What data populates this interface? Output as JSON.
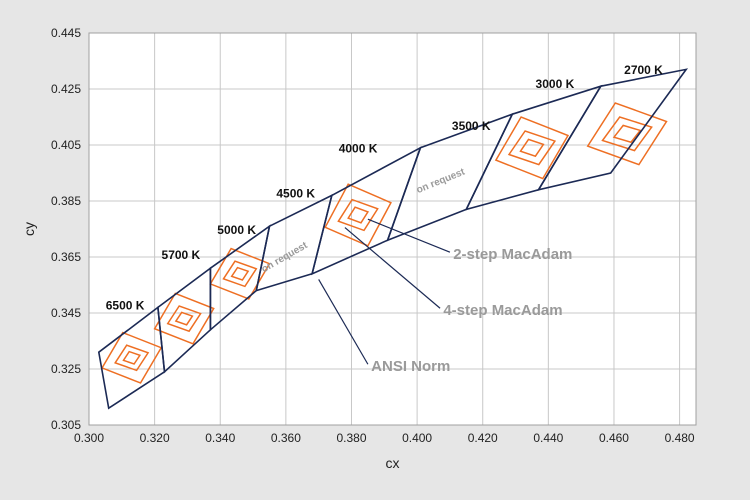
{
  "chart_data": {
    "type": "scatter",
    "title": "",
    "xlabel": "cx",
    "ylabel": "cy",
    "xlim": [
      0.3,
      0.485
    ],
    "ylim": [
      0.305,
      0.445
    ],
    "x_ticks": [
      0.3,
      0.32,
      0.34,
      0.36,
      0.38,
      0.4,
      0.42,
      0.44,
      0.46,
      0.48
    ],
    "x_tick_labels": [
      "0.300",
      "0.320",
      "0.340",
      "0.360",
      "0.380",
      "0.400",
      "0.420",
      "0.440",
      "0.460",
      "0.480"
    ],
    "y_ticks": [
      0.305,
      0.325,
      0.345,
      0.365,
      0.385,
      0.405,
      0.425,
      0.445
    ],
    "y_tick_labels": [
      "0.305",
      "0.325",
      "0.345",
      "0.365",
      "0.385",
      "0.405",
      "0.425",
      "0.445"
    ],
    "grid": true,
    "colors": {
      "ansi": "#1c2a55",
      "macadam": "#ee6f23",
      "annotation": "#9a9a9a",
      "plot_bg": "#ffffff",
      "page_bg": "#e6e6e6"
    },
    "ansi_quads": [
      {
        "label": "6500 K",
        "label_at": [
          0.311,
          0.3463
        ],
        "corners": [
          [
            0.303,
            0.331
          ],
          [
            0.321,
            0.347
          ],
          [
            0.323,
            0.324
          ],
          [
            0.306,
            0.311
          ]
        ]
      },
      {
        "label": "5700 K",
        "label_at": [
          0.328,
          0.3643
        ],
        "corners": [
          [
            0.321,
            0.347
          ],
          [
            0.337,
            0.361
          ],
          [
            0.337,
            0.339
          ],
          [
            0.323,
            0.324
          ]
        ]
      },
      {
        "label": "5000 K",
        "label_at": [
          0.345,
          0.3733
        ],
        "corners": [
          [
            0.337,
            0.361
          ],
          [
            0.355,
            0.376
          ],
          [
            0.351,
            0.353
          ],
          [
            0.337,
            0.339
          ]
        ]
      },
      {
        "label": "4500 K",
        "label_at": [
          0.363,
          0.3863
        ],
        "corners": [
          [
            0.355,
            0.376
          ],
          [
            0.374,
            0.387
          ],
          [
            0.368,
            0.359
          ],
          [
            0.351,
            0.353
          ]
        ]
      },
      {
        "label": "4000 K",
        "label_at": [
          0.382,
          0.4023
        ],
        "corners": [
          [
            0.374,
            0.387
          ],
          [
            0.401,
            0.404
          ],
          [
            0.391,
            0.371
          ],
          [
            0.368,
            0.359
          ]
        ]
      },
      {
        "label": "3500 K",
        "label_at": [
          0.4165,
          0.4103
        ],
        "corners": [
          [
            0.401,
            0.404
          ],
          [
            0.429,
            0.416
          ],
          [
            0.415,
            0.382
          ],
          [
            0.391,
            0.371
          ]
        ]
      },
      {
        "label": "3000 K",
        "label_at": [
          0.442,
          0.4253
        ],
        "corners": [
          [
            0.429,
            0.416
          ],
          [
            0.456,
            0.426
          ],
          [
            0.437,
            0.389
          ],
          [
            0.415,
            0.382
          ]
        ]
      },
      {
        "label": "2700 K",
        "label_at": [
          0.469,
          0.4303
        ],
        "corners": [
          [
            0.456,
            0.426
          ],
          [
            0.482,
            0.432
          ],
          [
            0.459,
            0.395
          ],
          [
            0.437,
            0.389
          ]
        ]
      }
    ],
    "macadam_ellipses": [
      {
        "center": [
          0.313,
          0.329
        ],
        "sizes": [
          [
            0.009,
            0.009
          ],
          [
            0.005,
            0.0045
          ],
          [
            0.0025,
            0.0022
          ]
        ]
      },
      {
        "center": [
          0.329,
          0.343
        ],
        "sizes": [
          [
            0.009,
            0.009
          ],
          [
            0.005,
            0.0045
          ],
          [
            0.0025,
            0.0022
          ]
        ]
      },
      {
        "center": [
          0.346,
          0.359
        ],
        "sizes": [
          [
            0.009,
            0.009
          ],
          [
            0.005,
            0.0045
          ],
          [
            0.0025,
            0.0022
          ]
        ]
      },
      {
        "center": [
          0.382,
          0.38
        ],
        "sizes": [
          [
            0.01,
            0.011
          ],
          [
            0.006,
            0.0055
          ],
          [
            0.003,
            0.0028
          ]
        ]
      },
      {
        "center": [
          0.435,
          0.404
        ],
        "sizes": [
          [
            0.011,
            0.011
          ],
          [
            0.007,
            0.006
          ],
          [
            0.0035,
            0.003
          ]
        ]
      },
      {
        "center": [
          0.464,
          0.409
        ],
        "sizes": [
          [
            0.012,
            0.011
          ],
          [
            0.0075,
            0.006
          ],
          [
            0.004,
            0.003
          ]
        ]
      }
    ],
    "annotations": [
      {
        "text": "on request",
        "at": [
          0.36,
          0.364
        ],
        "angle": -30
      },
      {
        "text": "on request",
        "at": [
          0.4075,
          0.3912
        ],
        "angle": -22
      }
    ],
    "callouts": [
      {
        "text": "2-step MacAdam",
        "at": [
          0.411,
          0.3642
        ],
        "line": [
          [
            0.385,
            0.3785
          ],
          [
            0.41,
            0.3667
          ]
        ]
      },
      {
        "text": "4-step MacAdam",
        "at": [
          0.408,
          0.3442
        ],
        "line": [
          [
            0.378,
            0.3755
          ],
          [
            0.407,
            0.3467
          ]
        ]
      },
      {
        "text": "ANSI Norm",
        "at": [
          0.386,
          0.3242
        ],
        "line": [
          [
            0.37,
            0.357
          ],
          [
            0.385,
            0.3267
          ]
        ]
      }
    ]
  }
}
